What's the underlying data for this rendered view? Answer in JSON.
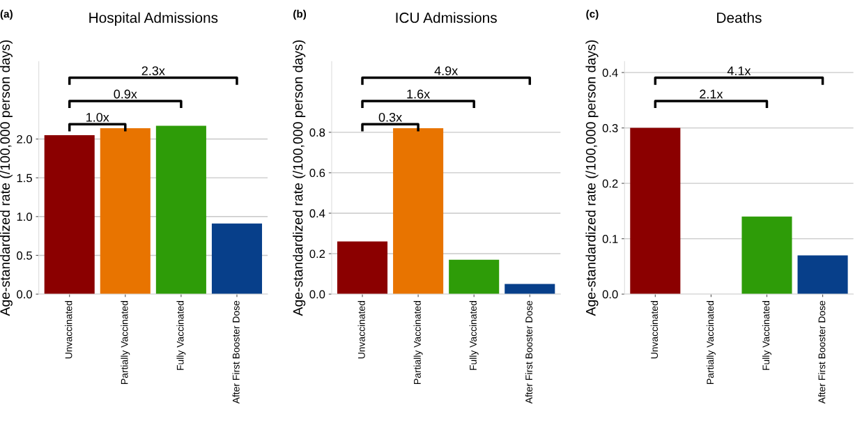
{
  "chart_data": [
    {
      "type": "bar",
      "title": "Hospital Admissions",
      "ylabel": "Age-standardized rate (/100,000 person days)",
      "categories": [
        "Unvaccinated",
        "Partially Vaccinated",
        "Fully Vaccinated",
        "After First Booster Dose"
      ],
      "values": [
        2.05,
        2.14,
        2.17,
        0.91
      ],
      "colors": [
        "#8b0000",
        "#e87400",
        "#2e9c08",
        "#073f8a"
      ],
      "ylim": [
        0,
        3.0
      ],
      "yticks": [
        {
          "value": 0,
          "label": "0.0"
        },
        0.5,
        {
          "value": 1,
          "label": "1.0"
        },
        1.5,
        {
          "value": 2,
          "label": "2.0"
        }
      ],
      "grid": "y",
      "annotations": [
        "(a)",
        "1.0x",
        "0.9x",
        "2.3x"
      ]
    },
    {
      "type": "bar",
      "title": "ICU Admissions",
      "ylabel": "Age-standardized rate (/100,000 person days)",
      "categories": [
        "Unvaccinated",
        "Partially Vaccinated",
        "Fully Vaccinated",
        "After First Booster Dose"
      ],
      "values": [
        0.26,
        0.82,
        0.17,
        0.05
      ],
      "colors": [
        "#8b0000",
        "#e87400",
        "#2e9c08",
        "#073f8a"
      ],
      "ylim": [
        0,
        1.15
      ],
      "yticks": [
        {
          "value": 0,
          "label": "0.0"
        },
        0.2,
        0.4,
        0.6,
        0.8
      ],
      "grid": "y",
      "annotations": [
        "(b)",
        "0.3x",
        "1.6x",
        "4.9x"
      ]
    },
    {
      "type": "bar",
      "title": "Deaths",
      "ylabel": "Age-standardized rate (/100,000 person days)",
      "categories": [
        "Unvaccinated",
        "Partially Vaccinated",
        "Fully Vaccinated",
        "After First Booster Dose"
      ],
      "values": [
        0.3,
        null,
        0.14,
        0.07
      ],
      "colors": [
        "#8b0000",
        "#e87400",
        "#2e9c08",
        "#073f8a"
      ],
      "ylim": [
        0,
        0.42
      ],
      "yticks": [
        {
          "value": 0,
          "label": "0.0"
        },
        0.1,
        0.2,
        0.3,
        0.4
      ],
      "grid": "y",
      "annotations": [
        "(c)",
        "2.1x",
        "4.1x"
      ]
    }
  ]
}
